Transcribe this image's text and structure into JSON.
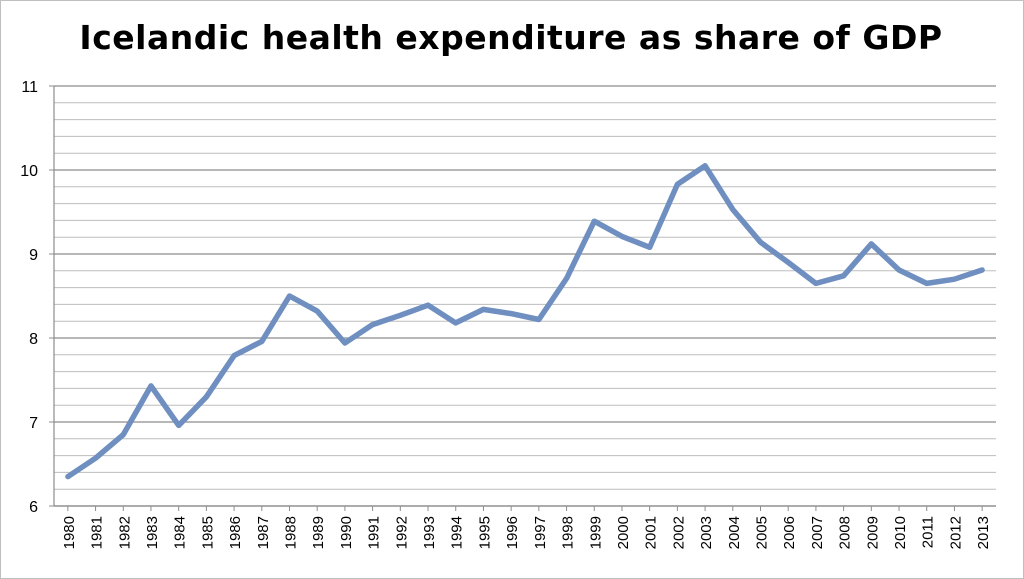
{
  "chart_data": {
    "type": "line",
    "title": "Icelandic health expenditure as share of GDP",
    "xlabel": "",
    "ylabel": "",
    "ylim": [
      6,
      11
    ],
    "yticks": [
      "6",
      "7",
      "8",
      "9",
      "10",
      "11"
    ],
    "minor_gridlines_per_unit": 5,
    "grid": true,
    "legend": "none",
    "line_color": "#6f8fc1",
    "categories": [
      "1980",
      "1981",
      "1982",
      "1983",
      "1984",
      "1985",
      "1986",
      "1987",
      "1988",
      "1989",
      "1990",
      "1991",
      "1992",
      "1993",
      "1994",
      "1995",
      "1996",
      "1997",
      "1998",
      "1999",
      "2000",
      "2001",
      "2002",
      "2003",
      "2004",
      "2005",
      "2006",
      "2007",
      "2008",
      "2009",
      "2010",
      "2011",
      "2012",
      "2013"
    ],
    "series": [
      {
        "values": [
          6.35,
          6.57,
          6.85,
          7.43,
          6.96,
          7.3,
          7.79,
          7.96,
          8.5,
          8.32,
          7.94,
          8.16,
          8.27,
          8.39,
          8.18,
          8.34,
          8.29,
          8.22,
          8.71,
          9.39,
          9.21,
          9.08,
          9.83,
          10.05,
          9.53,
          9.14,
          8.9,
          8.65,
          8.74,
          9.12,
          8.81,
          8.65,
          8.7,
          8.81
        ]
      }
    ]
  }
}
